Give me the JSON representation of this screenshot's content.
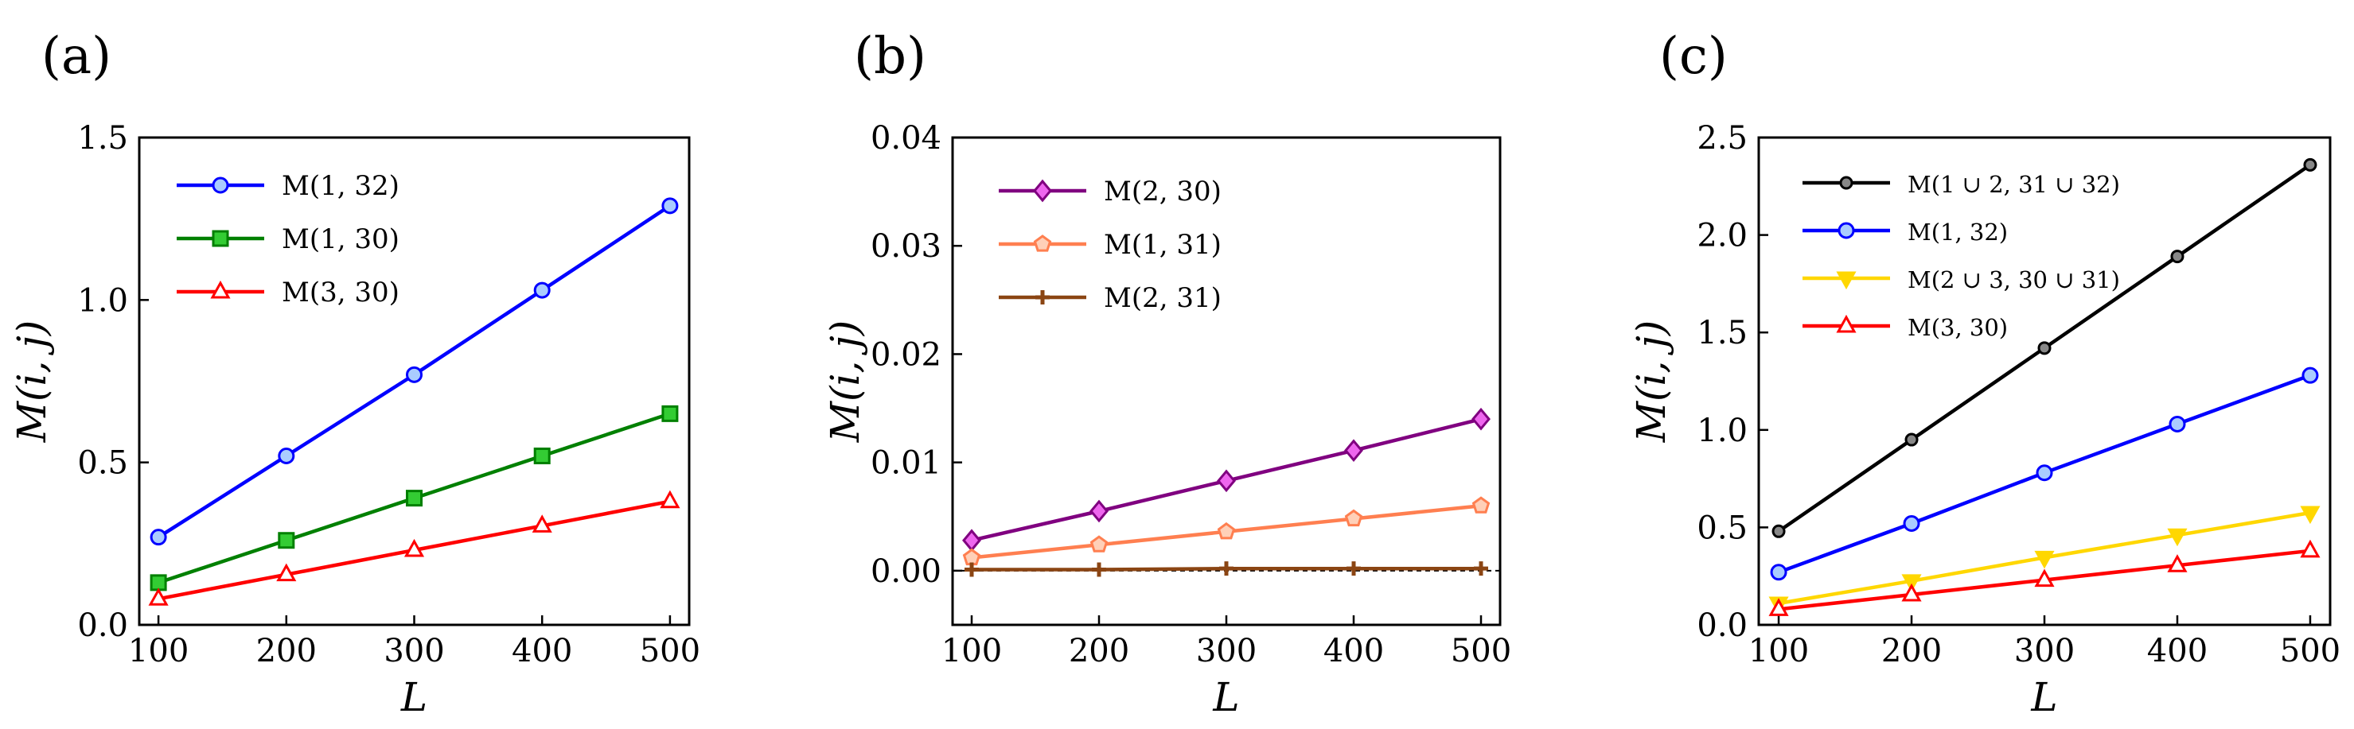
{
  "panels": [
    {
      "label": "(a)",
      "chart_data": {
        "type": "line",
        "x": [
          100,
          200,
          300,
          400,
          500
        ],
        "xlabel": "L",
        "ylabel": "M(i, j)",
        "xlim": [
          85,
          515
        ],
        "ylim": [
          0.0,
          1.5
        ],
        "xticks": [
          100,
          200,
          300,
          400,
          500
        ],
        "xtick_labels": [
          "100",
          "200",
          "300",
          "400",
          "500"
        ],
        "yticks": [
          0.0,
          0.5,
          1.0,
          1.5
        ],
        "ytick_labels": [
          "0.0",
          "0.5",
          "1.0",
          "1.5"
        ],
        "legend_position": "top-left",
        "series": [
          {
            "name": "M(1, 32)",
            "color": "#0000ff",
            "marker": "circle",
            "marker_fill": "#aaccff",
            "values": [
              0.27,
              0.52,
              0.77,
              1.03,
              1.29
            ]
          },
          {
            "name": "M(1, 30)",
            "color": "#008000",
            "marker": "square",
            "marker_fill": "#33cc33",
            "values": [
              0.13,
              0.26,
              0.39,
              0.52,
              0.65
            ]
          },
          {
            "name": "M(3, 30)",
            "color": "#ff0000",
            "marker": "triangle-up",
            "marker_fill": "#ffffff",
            "values": [
              0.08,
              0.155,
              0.23,
              0.305,
              0.38
            ]
          }
        ]
      }
    },
    {
      "label": "(b)",
      "chart_data": {
        "type": "line",
        "x": [
          100,
          200,
          300,
          400,
          500
        ],
        "xlabel": "L",
        "ylabel": "M(i, j)",
        "xlim": [
          85,
          515
        ],
        "ylim": [
          -0.005,
          0.04
        ],
        "xticks": [
          100,
          200,
          300,
          400,
          500
        ],
        "xtick_labels": [
          "100",
          "200",
          "300",
          "400",
          "500"
        ],
        "yticks": [
          0.0,
          0.01,
          0.02,
          0.03,
          0.04
        ],
        "ytick_labels": [
          "0.00",
          "0.01",
          "0.02",
          "0.03",
          "0.04"
        ],
        "zero_line": true,
        "legend_position": "top-left",
        "series": [
          {
            "name": "M(2, 30)",
            "color": "#800080",
            "marker": "diamond",
            "marker_fill": "#ee66ee",
            "values": [
              0.0028,
              0.0055,
              0.0083,
              0.0111,
              0.014
            ]
          },
          {
            "name": "M(1, 31)",
            "color": "#ff7f50",
            "marker": "pentagon",
            "marker_fill": "#ffd0b8",
            "values": [
              0.0012,
              0.0024,
              0.0036,
              0.0048,
              0.006
            ]
          },
          {
            "name": "M(2, 31)",
            "color": "#8b4513",
            "marker": "plus",
            "marker_fill": "#8b4513",
            "values": [
              0.0001,
              0.0001,
              0.0002,
              0.0002,
              0.0002
            ]
          }
        ]
      }
    },
    {
      "label": "(c)",
      "chart_data": {
        "type": "line",
        "x": [
          100,
          200,
          300,
          400,
          500
        ],
        "xlabel": "L",
        "ylabel": "M(i, j)",
        "xlim": [
          85,
          515
        ],
        "ylim": [
          0.0,
          2.5
        ],
        "xticks": [
          100,
          200,
          300,
          400,
          500
        ],
        "xtick_labels": [
          "100",
          "200",
          "300",
          "400",
          "500"
        ],
        "yticks": [
          0.0,
          0.5,
          1.0,
          1.5,
          2.0,
          2.5
        ],
        "ytick_labels": [
          "0.0",
          "0.5",
          "1.0",
          "1.5",
          "2.0",
          "2.5"
        ],
        "legend_position": "top-left",
        "series": [
          {
            "name": "M(1 ∪ 2, 31 ∪ 32)",
            "color": "#000000",
            "marker": "circle-small",
            "marker_fill": "#888888",
            "values": [
              0.48,
              0.95,
              1.42,
              1.89,
              2.36
            ]
          },
          {
            "name": "M(1, 32)",
            "color": "#0000ff",
            "marker": "circle",
            "marker_fill": "#aaccff",
            "values": [
              0.27,
              0.52,
              0.78,
              1.03,
              1.28
            ]
          },
          {
            "name": "M(2 ∪ 3, 30 ∪ 31)",
            "color": "#ffd700",
            "marker": "triangle-down",
            "marker_fill": "#ffd700",
            "values": [
              0.11,
              0.225,
              0.345,
              0.46,
              0.575
            ]
          },
          {
            "name": "M(3, 30)",
            "color": "#ff0000",
            "marker": "triangle-up",
            "marker_fill": "#ffffff",
            "values": [
              0.08,
              0.155,
              0.23,
              0.305,
              0.38
            ]
          }
        ]
      }
    }
  ]
}
